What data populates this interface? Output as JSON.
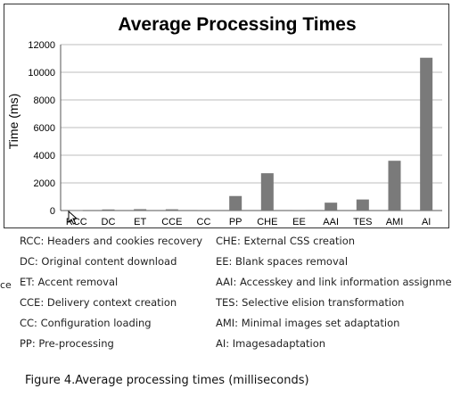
{
  "chart_data": {
    "type": "bar",
    "title": "Average Processing Times",
    "ylabel": "Time (ms)",
    "xlabel": "",
    "ylim": [
      0,
      12000
    ],
    "yticks": [
      "0",
      "2000",
      "4000",
      "6000",
      "8000",
      "10000",
      "12000"
    ],
    "grid": true,
    "legend": "none",
    "bar_color": "#7a7a7a",
    "categories": [
      "RCC",
      "DC",
      "ET",
      "CCE",
      "CC",
      "PP",
      "CHE",
      "EE",
      "AAI",
      "TES",
      "AMI",
      "AI"
    ],
    "values": [
      20,
      80,
      100,
      90,
      10,
      1050,
      2700,
      10,
      570,
      800,
      3600,
      11050
    ]
  },
  "legend_left": [
    "RCC: Headers and cookies recovery",
    "DC: Original content download",
    "ET: Accent removal",
    "CCE: Delivery context creation",
    "CC: Configuration loading",
    "PP: Pre-processing"
  ],
  "legend_right": [
    "CHE: External CSS creation",
    "EE: Blank spaces removal",
    "AAI: Accesskey and link information assignment",
    "TES: Selective elision transformation",
    "AMI: Minimal images set adaptation",
    "AI: Imagesadaptation"
  ],
  "stray_text": "ce",
  "caption": "Figure 4.Average processing times (milliseconds)"
}
